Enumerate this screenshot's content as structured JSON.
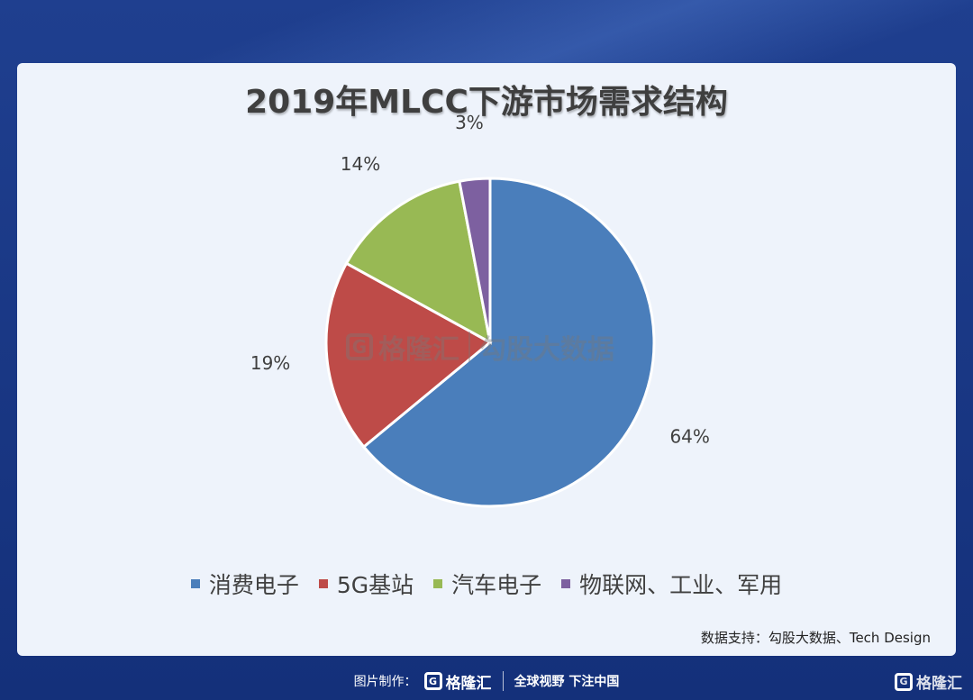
{
  "chart_data": {
    "type": "pie",
    "title": "2019年MLCC下游市场需求结构",
    "categories": [
      "消费电子",
      "5G基站",
      "汽车电子",
      "物联网、工业、军用"
    ],
    "values": [
      64,
      19,
      14,
      3
    ],
    "value_labels": [
      "64%",
      "19%",
      "14%",
      "3%"
    ],
    "colors": [
      "#4a7ebb",
      "#be4b48",
      "#98b954",
      "#7d60a0"
    ],
    "legend_position": "bottom"
  },
  "watermark": {
    "brand": "格隆汇",
    "partner": "勾股大数据"
  },
  "source": "数据支持：勾股大数据、Tech Design",
  "footer": {
    "made_by_label": "图片制作：",
    "brand": "格隆汇",
    "slogan": "全球视野 下注中国"
  },
  "corner_brand": "格隆汇",
  "logo_glyph": "G"
}
